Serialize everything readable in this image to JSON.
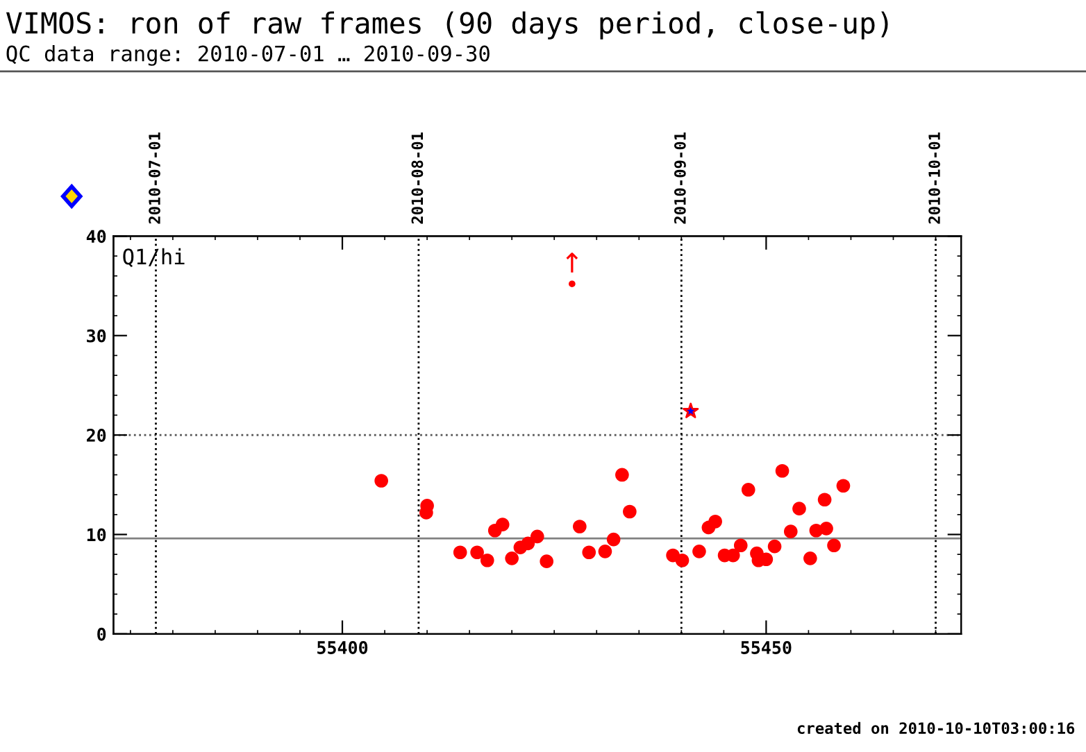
{
  "chart_data": {
    "type": "scatter",
    "title": "VIMOS: ron of raw frames (90 days period, close-up)",
    "subtitle": "QC data range: 2010-07-01 … 2010-09-30",
    "annotations": [
      "Q1/hi",
      "created on 2010-10-10T03:00:16",
      {
        "text": "↑",
        "x": 55427.1,
        "y": 35.2
      }
    ],
    "series": [
      {
        "color": "#ff0000",
        "marker": "circle",
        "x": [
          55404.6,
          55410.0,
          55409.9,
          55413.9,
          55415.9,
          55417.1,
          55418.0,
          55418.9,
          55420.0,
          55421.0,
          55421.9,
          55423.0,
          55424.1,
          55428.0,
          55429.1,
          55431.0,
          55432.0,
          55433.0,
          55433.9,
          55439.0,
          55440.1,
          55442.1,
          55443.2,
          55444.0,
          55445.1,
          55446.1,
          55447.0,
          55447.9,
          55448.9,
          55449.1,
          55450.0,
          55451.0,
          55451.9,
          55452.9,
          55453.9,
          55455.2,
          55455.9,
          55456.9,
          55457.1,
          55458.0,
          55459.1
        ],
        "values": [
          15.4,
          12.9,
          12.2,
          8.2,
          8.2,
          7.4,
          10.4,
          11.0,
          7.6,
          8.7,
          9.1,
          9.8,
          7.3,
          10.8,
          8.2,
          8.3,
          9.5,
          16.0,
          12.3,
          7.9,
          7.4,
          8.3,
          10.7,
          11.3,
          7.9,
          7.9,
          8.9,
          14.5,
          8.1,
          7.4,
          7.5,
          8.8,
          16.4,
          10.3,
          12.6,
          7.6,
          10.4,
          13.5,
          10.6,
          8.9,
          14.9
        ]
      },
      {
        "color": "#ff0000",
        "marker": "circle",
        "x": [
          55427.1
        ],
        "values": [
          35.2
        ]
      },
      {
        "color": "#0000ff",
        "marker": "star",
        "x": [
          55441.1
        ],
        "values": [
          22.4
        ]
      }
    ],
    "ref_lines": [
      {
        "axis": "y",
        "value": 9.6,
        "color": "#808080",
        "line_style": "solid"
      },
      {
        "axis": "y",
        "value": 20,
        "color": "#555555",
        "line_style": "dotted"
      },
      {
        "axis": "x",
        "value": 55378,
        "color": "#000000",
        "line_style": "dotted"
      },
      {
        "axis": "x",
        "value": 55409,
        "color": "#000000",
        "line_style": "dotted"
      },
      {
        "axis": "x",
        "value": 55440,
        "color": "#000000",
        "line_style": "dotted"
      },
      {
        "axis": "x",
        "value": 55470,
        "color": "#000000",
        "line_style": "dotted"
      }
    ],
    "x2lim": [
      "2010-06-26",
      "2010-10-04"
    ],
    "x2ticks": [
      "2010-07-01",
      "2010-08-01",
      "2010-09-01",
      "2010-10-01"
    ],
    "xlim": [
      55373,
      55473
    ],
    "xticks": [
      55400,
      55450
    ],
    "ylim": [
      0,
      40
    ],
    "yticks": [
      0,
      10,
      20,
      30,
      40
    ],
    "grid": false,
    "legend": false
  }
}
